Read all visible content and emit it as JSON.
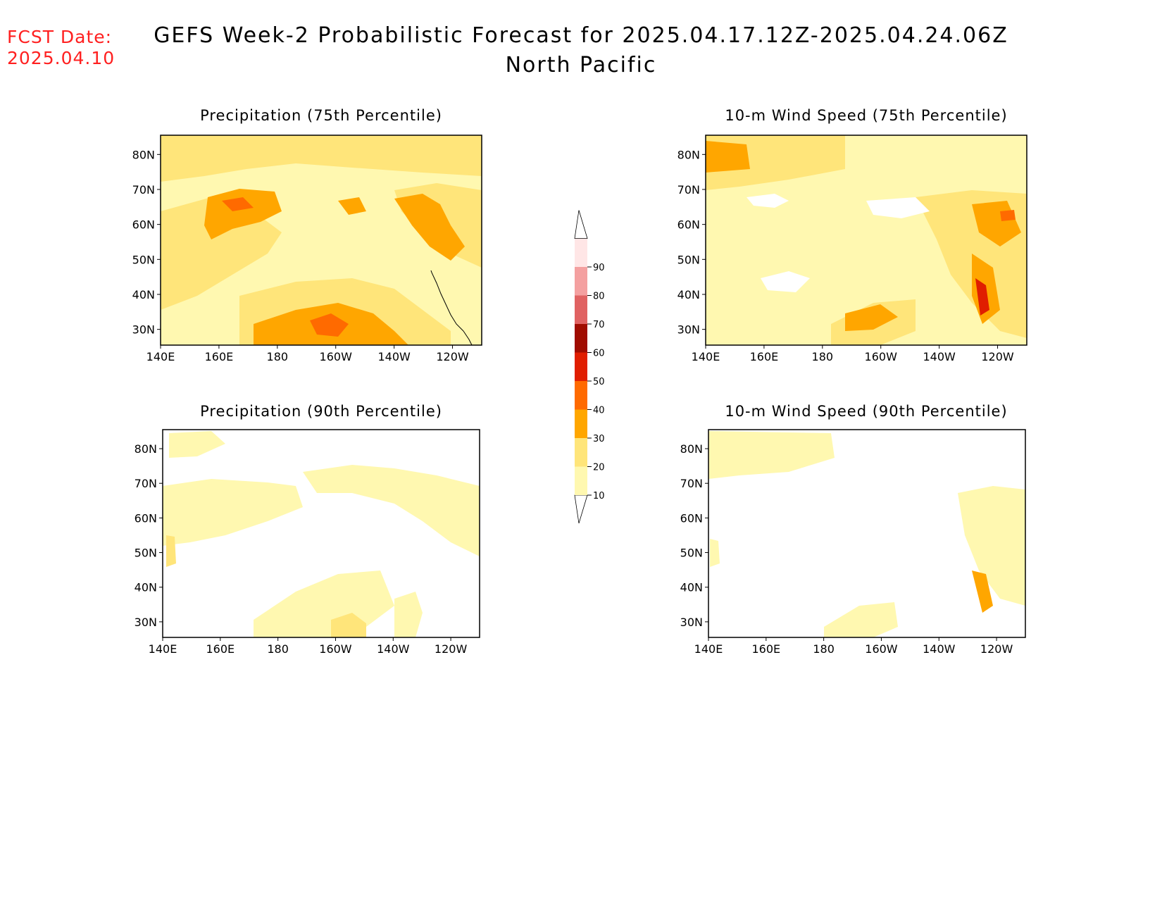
{
  "header": {
    "fcst_label": "FCST Date:",
    "fcst_date": "2025.04.10",
    "title_line1": "GEFS Week-2 Probabilistic Forecast for 2025.04.17.12Z-2025.04.24.06Z",
    "title_line2": "North Pacific"
  },
  "panels": [
    {
      "id": "precip-75",
      "title": "Precipitation (75th Percentile)"
    },
    {
      "id": "wind-75",
      "title": "10-m Wind Speed (75th Percentile)"
    },
    {
      "id": "precip-90",
      "title": "Precipitation (90th Percentile)"
    },
    {
      "id": "wind-90",
      "title": "10-m Wind Speed (90th Percentile)"
    }
  ],
  "axes": {
    "lat_labels": [
      "80N",
      "70N",
      "60N",
      "50N",
      "40N",
      "30N"
    ],
    "lon_labels": [
      "140E",
      "160E",
      "180",
      "160W",
      "140W",
      "120W"
    ]
  },
  "colorbar": {
    "levels": [
      "10",
      "20",
      "30",
      "40",
      "50",
      "60",
      "70",
      "80",
      "90"
    ],
    "colors": [
      "#fff8b0",
      "#ffe57a",
      "#ffa600",
      "#ff6a00",
      "#e01e00",
      "#a00c00",
      "#e06262",
      "#f4a0a0",
      "#ffe6e6"
    ]
  }
}
